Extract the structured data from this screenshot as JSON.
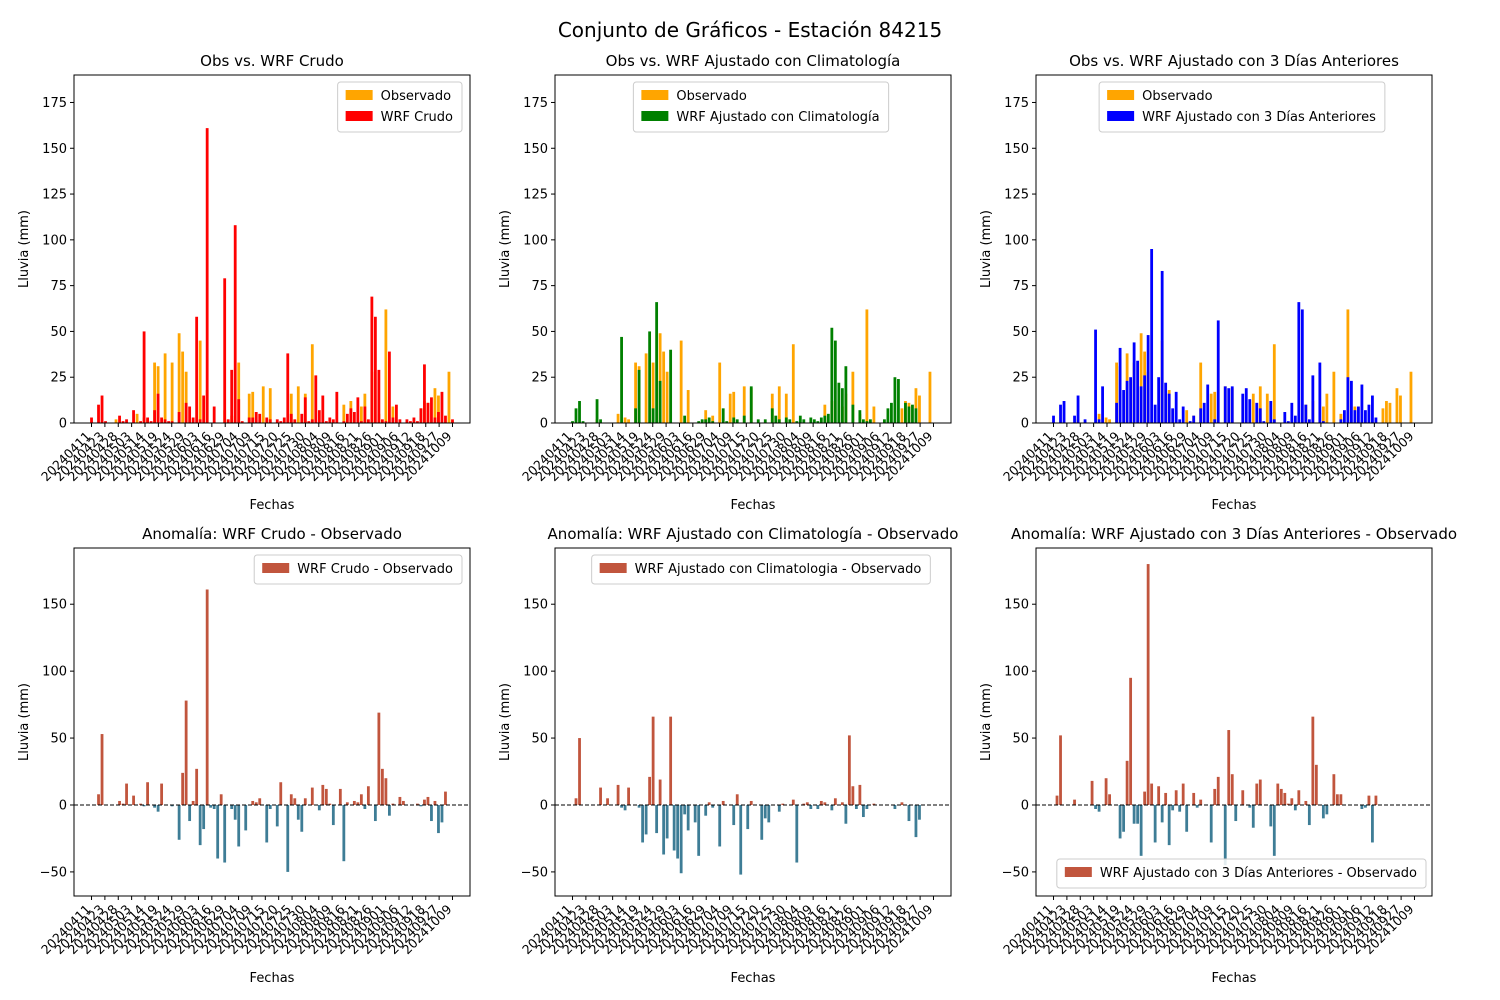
{
  "figure": {
    "title": "Conjunto de Gráficos - Estación 84215"
  },
  "colors": {
    "observado": "#ffa500",
    "wrf_crudo": "#ff0000",
    "wrf_clima": "#008000",
    "wrf_3dias": "#0000ff",
    "anom_pos": "#c1553d",
    "anom_neg": "#3e7d96"
  },
  "tick_labels": [
    "20240411",
    "20240423",
    "20240428",
    "20240503",
    "20240514",
    "20240519",
    "20240524",
    "20240529",
    "20240603",
    "20240616",
    "20240629",
    "20240704",
    "20240709",
    "20240715",
    "20240720",
    "20240725",
    "20240730",
    "20240804",
    "20240809",
    "20240816",
    "20240821",
    "20240826",
    "20240901",
    "20240906",
    "20240912",
    "20240918",
    "20240927",
    "20241009"
  ],
  "chart_data": [
    {
      "type": "bar",
      "title": "Obs vs. WRF Crudo",
      "xlabel": "Fechas",
      "ylabel": "Lluvia (mm)",
      "ylim": [
        0,
        190
      ],
      "yticks": [
        0,
        25,
        50,
        75,
        100,
        125,
        150,
        175
      ],
      "legend": "top-right",
      "series": [
        {
          "name": "Observado",
          "color_key": "observado",
          "values": [
            0,
            0,
            0,
            0,
            0,
            0,
            0,
            2,
            0,
            0,
            0,
            0,
            0,
            5,
            0,
            3,
            2,
            0,
            33,
            31,
            0,
            38,
            0,
            33,
            0,
            49,
            39,
            28,
            0,
            0,
            0,
            45,
            0,
            18,
            0,
            0,
            0,
            0,
            7,
            0,
            4,
            0,
            33,
            0,
            0,
            16,
            17,
            0,
            0,
            20,
            0,
            19,
            0,
            0,
            0,
            0,
            0,
            16,
            0,
            20,
            0,
            16,
            0,
            43,
            0,
            0,
            0,
            0,
            0,
            0,
            0,
            0,
            10,
            0,
            12,
            0,
            0,
            9,
            16,
            0,
            28,
            0,
            5,
            0,
            62,
            0,
            9,
            0,
            0,
            0,
            0,
            0,
            0,
            0,
            8,
            12,
            11,
            0,
            19,
            15,
            0,
            0,
            28,
            0
          ]
        },
        {
          "name": "WRF Crudo",
          "color_key": "wrf_crudo",
          "values": [
            3,
            0,
            10,
            15,
            1,
            0,
            0,
            0,
            4,
            1,
            2,
            0,
            7,
            0,
            1,
            50,
            3,
            1,
            7,
            16,
            3,
            2,
            1,
            1,
            0,
            6,
            0,
            11,
            9,
            3,
            58,
            2,
            15,
            161,
            0,
            9,
            0,
            0,
            79,
            2,
            29,
            108,
            13,
            1,
            0,
            3,
            3,
            6,
            5,
            0,
            3,
            2,
            0,
            2,
            1,
            3,
            38,
            5,
            2,
            0,
            5,
            14,
            1,
            2,
            26,
            7,
            15,
            1,
            3,
            2,
            17,
            0,
            1,
            5,
            8,
            6,
            14,
            1,
            9,
            2,
            69,
            58,
            29,
            2,
            1,
            39,
            3,
            10,
            2,
            0,
            2,
            1,
            3,
            1,
            8,
            32,
            11,
            14,
            3,
            6,
            17,
            4,
            0,
            2
          ]
        }
      ]
    },
    {
      "type": "bar",
      "title": "Obs vs. WRF Ajustado con Climatología",
      "xlabel": "Fechas",
      "ylabel": "Lluvia (mm)",
      "ylim": [
        0,
        190
      ],
      "yticks": [
        0,
        25,
        50,
        75,
        100,
        125,
        150,
        175
      ],
      "legend": "top-center",
      "series": [
        {
          "name": "Observado",
          "color_key": "observado",
          "values": [
            0,
            0,
            0,
            0,
            0,
            0,
            0,
            2,
            0,
            0,
            0,
            0,
            0,
            5,
            0,
            3,
            2,
            0,
            33,
            31,
            0,
            38,
            0,
            33,
            0,
            49,
            39,
            28,
            0,
            0,
            0,
            45,
            0,
            18,
            0,
            0,
            0,
            0,
            7,
            0,
            4,
            0,
            33,
            0,
            0,
            16,
            17,
            0,
            0,
            20,
            0,
            19,
            0,
            0,
            0,
            0,
            0,
            16,
            0,
            20,
            0,
            16,
            0,
            43,
            0,
            0,
            0,
            0,
            0,
            0,
            0,
            0,
            10,
            0,
            12,
            0,
            0,
            9,
            16,
            0,
            28,
            0,
            5,
            0,
            62,
            0,
            9,
            0,
            0,
            0,
            0,
            0,
            0,
            0,
            8,
            12,
            11,
            0,
            19,
            15,
            0,
            0,
            28,
            0
          ]
        },
        {
          "name": "WRF Ajustado con Climatología",
          "color_key": "wrf_clima",
          "values": [
            1,
            8,
            12,
            1,
            0,
            0,
            0,
            13,
            2,
            0,
            0,
            0,
            0,
            0,
            47,
            0,
            0,
            0,
            8,
            29,
            0,
            0,
            50,
            8,
            66,
            23,
            0,
            0,
            40,
            0,
            0,
            0,
            4,
            0,
            0,
            0,
            1,
            2,
            2,
            3,
            1,
            0,
            0,
            8,
            1,
            0,
            3,
            2,
            0,
            4,
            0,
            20,
            0,
            2,
            0,
            2,
            0,
            8,
            4,
            2,
            0,
            3,
            2,
            0,
            1,
            4,
            2,
            0,
            3,
            2,
            1,
            3,
            4,
            5,
            52,
            45,
            22,
            19,
            31,
            0,
            10,
            0,
            7,
            2,
            1,
            2,
            0,
            0,
            0,
            2,
            8,
            11,
            25,
            24,
            0,
            11,
            9,
            10,
            8,
            0,
            0,
            0,
            0,
            0
          ]
        }
      ]
    },
    {
      "type": "bar",
      "title": "Obs vs. WRF Ajustado con 3 Días Anteriores",
      "xlabel": "Fechas",
      "ylabel": "Lluvia (mm)",
      "ylim": [
        0,
        190
      ],
      "yticks": [
        0,
        25,
        50,
        75,
        100,
        125,
        150,
        175
      ],
      "legend": "top-center",
      "series": [
        {
          "name": "Observado",
          "color_key": "observado",
          "values": [
            0,
            0,
            0,
            0,
            0,
            0,
            0,
            2,
            0,
            0,
            0,
            0,
            0,
            5,
            0,
            3,
            2,
            0,
            33,
            31,
            0,
            38,
            0,
            33,
            0,
            49,
            39,
            28,
            0,
            0,
            0,
            45,
            0,
            18,
            0,
            0,
            0,
            0,
            7,
            0,
            4,
            0,
            33,
            0,
            0,
            16,
            17,
            0,
            0,
            20,
            0,
            19,
            0,
            0,
            0,
            0,
            0,
            16,
            0,
            20,
            0,
            16,
            0,
            43,
            0,
            0,
            0,
            0,
            0,
            0,
            0,
            0,
            10,
            0,
            12,
            0,
            0,
            9,
            16,
            0,
            28,
            0,
            5,
            0,
            62,
            0,
            9,
            0,
            0,
            0,
            0,
            0,
            0,
            0,
            8,
            12,
            11,
            0,
            19,
            15,
            0,
            0,
            28,
            0
          ]
        },
        {
          "name": "WRF Ajustado con 3 Días Anteriores",
          "color_key": "wrf_3dias",
          "values": [
            4,
            0,
            10,
            12,
            0,
            0,
            4,
            15,
            0,
            2,
            0,
            0,
            51,
            2,
            20,
            0,
            0,
            0,
            11,
            41,
            18,
            23,
            25,
            44,
            34,
            20,
            26,
            48,
            95,
            10,
            25,
            83,
            22,
            16,
            8,
            17,
            2,
            9,
            0,
            1,
            4,
            0,
            8,
            11,
            21,
            0,
            2,
            56,
            0,
            20,
            19,
            20,
            0,
            0,
            16,
            19,
            13,
            0,
            11,
            8,
            1,
            0,
            12,
            2,
            0,
            0,
            6,
            1,
            11,
            4,
            66,
            62,
            10,
            2,
            26,
            0,
            33,
            1,
            0,
            0,
            0,
            0,
            2,
            7,
            25,
            23,
            7,
            9,
            21,
            7,
            10,
            15,
            3,
            0,
            0,
            0,
            0,
            0,
            0,
            0,
            0,
            0,
            0,
            0
          ]
        }
      ]
    },
    {
      "type": "bar",
      "title": "Anomalía: WRF Crudo - Observado",
      "xlabel": "Fechas",
      "ylabel": "Lluvia (mm)",
      "ylim": [
        -68,
        192
      ],
      "yticks": [
        -50,
        0,
        50,
        100,
        150
      ],
      "legend": "top-right",
      "zero_line": true,
      "series": [
        {
          "name": "WRF Crudo - Observado",
          "color_key": "anom_pos",
          "neg_color_key": "anom_neg",
          "values": [
            0,
            0,
            8,
            53,
            0,
            0,
            0,
            0,
            3,
            1,
            16,
            0,
            7,
            0,
            1,
            -1,
            17,
            0,
            -2,
            -5,
            16,
            0,
            0,
            -1,
            0,
            -26,
            24,
            78,
            -12,
            3,
            27,
            -30,
            -18,
            161,
            -2,
            -3,
            -40,
            8,
            -43,
            0,
            -3,
            -11,
            -31,
            0,
            -19,
            0,
            3,
            2,
            5,
            0,
            -28,
            -3,
            0,
            -16,
            17,
            0,
            -50,
            8,
            5,
            -11,
            -20,
            5,
            0,
            13,
            0,
            -4,
            15,
            12,
            1,
            -15,
            0,
            12,
            -42,
            2,
            0,
            3,
            2,
            8,
            -3,
            14,
            0,
            -12,
            69,
            27,
            20,
            -8,
            1,
            0,
            6,
            3,
            0,
            0,
            0,
            1,
            -1,
            4,
            6,
            -12,
            3,
            -21,
            -13,
            10,
            0,
            0
          ]
        }
      ]
    },
    {
      "type": "bar",
      "title": "Anomalía: WRF Ajustado con Climatología - Observado",
      "xlabel": "Fechas",
      "ylabel": "Lluvia (mm)",
      "ylim": [
        -68,
        192
      ],
      "yticks": [
        -50,
        0,
        50,
        100,
        150
      ],
      "legend": "top-center",
      "zero_line": true,
      "series": [
        {
          "name": "WRF Ajustado con Climatologia - Observado",
          "color_key": "anom_pos",
          "neg_color_key": "anom_neg",
          "values": [
            0,
            5,
            50,
            0,
            0,
            0,
            0,
            0,
            13,
            0,
            5,
            0,
            0,
            15,
            -2,
            -4,
            13,
            0,
            0,
            -2,
            -28,
            -22,
            21,
            66,
            -21,
            19,
            -37,
            -25,
            66,
            -34,
            -40,
            -51,
            -7,
            -19,
            0,
            -13,
            -38,
            0,
            -8,
            2,
            -2,
            0,
            -31,
            3,
            0,
            0,
            -15,
            8,
            -52,
            0,
            -18,
            3,
            0,
            0,
            -26,
            -10,
            -13,
            0,
            0,
            -5,
            1,
            0,
            0,
            4,
            -43,
            0,
            1,
            2,
            -3,
            0,
            -3,
            3,
            2,
            0,
            -4,
            5,
            0,
            2,
            -14,
            52,
            14,
            -3,
            15,
            -9,
            -3,
            0,
            1,
            0,
            0,
            0,
            0,
            0,
            -3,
            0,
            2,
            0,
            -12,
            0,
            -24,
            -11,
            0,
            0,
            0,
            0
          ]
        }
      ]
    },
    {
      "type": "bar",
      "title": "Anomalía: WRF Ajustado con 3 Días Anteriores - Observado",
      "xlabel": "Fechas",
      "ylabel": "Lluvia (mm)",
      "ylim": [
        -68,
        192
      ],
      "yticks": [
        -50,
        0,
        50,
        100,
        150
      ],
      "legend": "bottom-right",
      "zero_line": true,
      "series": [
        {
          "name": "WRF Ajustado con 3 Días Anteriores - Observado",
          "color_key": "anom_pos",
          "neg_color_key": "anom_neg",
          "values": [
            0,
            7,
            52,
            0,
            0,
            0,
            4,
            0,
            0,
            0,
            0,
            18,
            -3,
            -5,
            0,
            20,
            8,
            0,
            0,
            -25,
            -20,
            33,
            95,
            -14,
            -14,
            -38,
            10,
            180,
            16,
            -28,
            14,
            -13,
            9,
            -30,
            -4,
            11,
            -5,
            16,
            -20,
            0,
            9,
            -2,
            4,
            0,
            0,
            -28,
            12,
            21,
            0,
            -45,
            56,
            23,
            -12,
            0,
            11,
            0,
            -2,
            -17,
            16,
            19,
            0,
            0,
            -16,
            -38,
            16,
            12,
            9,
            1,
            5,
            -4,
            11,
            0,
            3,
            -15,
            66,
            30,
            0,
            -10,
            -7,
            0,
            23,
            8,
            8,
            0,
            0,
            0,
            0,
            0,
            -3,
            -2,
            7,
            -28,
            7,
            0,
            0,
            0,
            0,
            0,
            0,
            0,
            0,
            0,
            0,
            0
          ]
        }
      ]
    }
  ]
}
